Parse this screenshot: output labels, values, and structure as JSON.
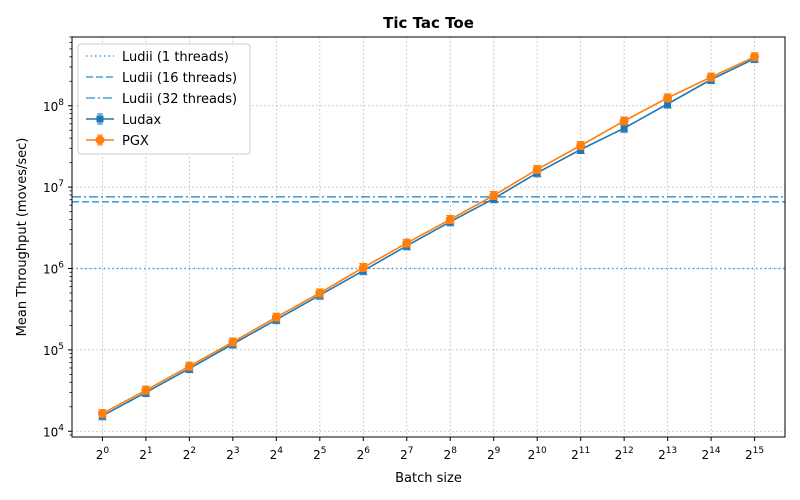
{
  "chart_data": {
    "type": "line",
    "title": "Tic Tac Toe",
    "xlabel": "Batch size",
    "ylabel": "Mean Throughput (moves/sec)",
    "x_scale": "log2",
    "y_scale": "log10",
    "x": [
      1,
      2,
      4,
      8,
      16,
      32,
      64,
      128,
      256,
      512,
      1024,
      2048,
      4096,
      8192,
      16384,
      32768
    ],
    "x_tick_labels": [
      {
        "base": "2",
        "exp": "0"
      },
      {
        "base": "2",
        "exp": "1"
      },
      {
        "base": "2",
        "exp": "2"
      },
      {
        "base": "2",
        "exp": "3"
      },
      {
        "base": "2",
        "exp": "4"
      },
      {
        "base": "2",
        "exp": "5"
      },
      {
        "base": "2",
        "exp": "6"
      },
      {
        "base": "2",
        "exp": "7"
      },
      {
        "base": "2",
        "exp": "8"
      },
      {
        "base": "2",
        "exp": "9"
      },
      {
        "base": "2",
        "exp": "10"
      },
      {
        "base": "2",
        "exp": "11"
      },
      {
        "base": "2",
        "exp": "12"
      },
      {
        "base": "2",
        "exp": "13"
      },
      {
        "base": "2",
        "exp": "14"
      },
      {
        "base": "2",
        "exp": "15"
      }
    ],
    "y_ticks": [
      {
        "value": 10000,
        "base": "10",
        "exp": "4"
      },
      {
        "value": 100000,
        "base": "10",
        "exp": "5"
      },
      {
        "value": 1000000,
        "base": "10",
        "exp": "6"
      },
      {
        "value": 10000000,
        "base": "10",
        "exp": "7"
      },
      {
        "value": 100000000,
        "base": "10",
        "exp": "8"
      }
    ],
    "ylim": [
      8500,
      700000000
    ],
    "grid": true,
    "legend_position": "top-left",
    "hlines": [
      {
        "name": "Ludii (1 threads)",
        "value": 1000000,
        "color": "#4d9ed8",
        "style": "dotted"
      },
      {
        "name": "Ludii (16 threads)",
        "value": 6600000,
        "color": "#4d9ed8",
        "style": "dashed"
      },
      {
        "name": "Ludii (32 threads)",
        "value": 7600000,
        "color": "#4d9ed8",
        "style": "dashdot"
      }
    ],
    "series": [
      {
        "name": "Ludax",
        "color": "#1f77b4",
        "marker": "square",
        "values": [
          15500,
          30000,
          59000,
          118000,
          235000,
          470000,
          940000,
          1900000,
          3750000,
          7200000,
          15000000,
          29000000,
          53000000,
          105000000,
          210000000,
          380000000
        ]
      },
      {
        "name": "PGX",
        "color": "#ff7f0e",
        "marker": "circle",
        "values": [
          16500,
          32000,
          63000,
          125000,
          252000,
          500000,
          1030000,
          2050000,
          4000000,
          7900000,
          16500000,
          32500000,
          65000000,
          125000000,
          225000000,
          400000000
        ]
      }
    ]
  }
}
